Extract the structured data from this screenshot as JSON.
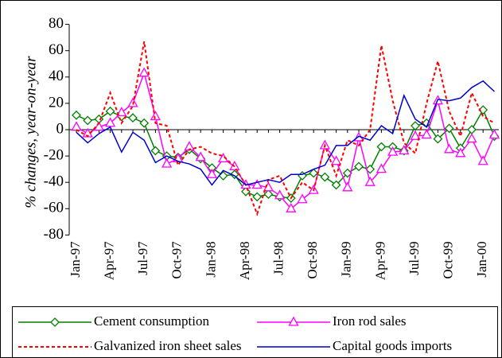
{
  "chart_data": {
    "type": "line",
    "y_label": "% changes, year-on-year",
    "categories": [
      "Jan-97",
      null,
      null,
      "Apr-97",
      null,
      null,
      "Jul-97",
      null,
      null,
      "Oct-97",
      null,
      null,
      "Jan-98",
      null,
      null,
      "Apr-98",
      null,
      null,
      "Jul-98",
      null,
      null,
      "Oct-98",
      null,
      null,
      "Jan-99",
      null,
      null,
      "Apr-99",
      null,
      null,
      "Jul-99",
      null,
      null,
      "Oct-99",
      null,
      null,
      "Jan-00",
      null
    ],
    "ylim": [
      -80,
      80
    ],
    "yticks": [
      -80,
      -60,
      -40,
      -20,
      0,
      20,
      40,
      60,
      80
    ],
    "series": [
      {
        "name": "Cement consumption",
        "color": "#008000",
        "marker": "diamond",
        "dash": "solid",
        "values": [
          11,
          7,
          8,
          14,
          10,
          9,
          5,
          -16,
          -20,
          -21,
          -15,
          -22,
          -29,
          -35,
          -34,
          -47,
          -51,
          -49,
          -51,
          -52,
          -35,
          -33,
          -36,
          -42,
          -33,
          -28,
          -30,
          -13,
          -13,
          -16,
          3,
          5,
          -7,
          1,
          -14,
          0,
          15,
          -5
        ]
      },
      {
        "name": "Iron rod sales",
        "color": "#ff00ff",
        "marker": "triangle",
        "dash": "solid",
        "values": [
          2,
          -3,
          2,
          5,
          13,
          20,
          43,
          10,
          -26,
          -22,
          -13,
          -21,
          -34,
          -22,
          -28,
          -42,
          -42,
          -44,
          -50,
          -60,
          -53,
          -46,
          -12,
          -24,
          -44,
          -6,
          -40,
          -30,
          -17,
          -16,
          -5,
          -4,
          22,
          -15,
          -18,
          -7,
          -24,
          -4
        ]
      },
      {
        "name": "Galvanized iron sheet sales",
        "color": "#ff0000",
        "marker": "none",
        "dash": "dotted",
        "values": [
          0,
          -5,
          5,
          28,
          5,
          18,
          67,
          5,
          3,
          -27,
          -15,
          -13,
          -18,
          -20,
          -28,
          -42,
          -64,
          -38,
          -35,
          -52,
          -40,
          -46,
          -12,
          -35,
          -8,
          -12,
          0,
          64,
          22,
          -10,
          -18,
          20,
          52,
          14,
          -5,
          28,
          10,
          5
        ]
      },
      {
        "name": "Capital goods imports",
        "color": "#0000cc",
        "marker": "none",
        "dash": "solid",
        "values": [
          -2,
          -10,
          -3,
          2,
          -17,
          -2,
          -8,
          -25,
          -20,
          -24,
          -26,
          -30,
          -42,
          -31,
          -35,
          -42,
          -40,
          -38,
          -40,
          -34,
          -34,
          -30,
          -27,
          -12,
          -12,
          -5,
          -8,
          3,
          -3,
          26,
          8,
          2,
          23,
          22,
          24,
          32,
          37,
          29
        ]
      }
    ]
  }
}
